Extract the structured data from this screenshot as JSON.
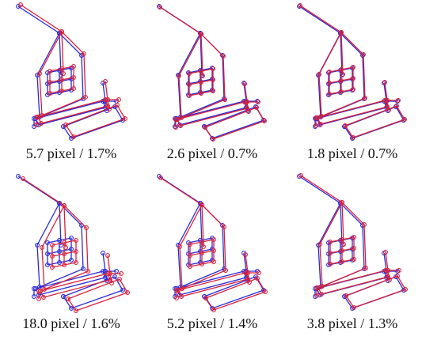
{
  "panels": [
    {
      "caption": "5.7 pixel / 1.7%"
    },
    {
      "caption": "2.6 pixel / 0.7%"
    },
    {
      "caption": "1.8 pixel / 0.7%"
    },
    {
      "caption": "18.0 pixel / 1.6%"
    },
    {
      "caption": "5.2 pixel / 1.4%"
    },
    {
      "caption": "3.8 pixel / 1.3%"
    }
  ]
}
